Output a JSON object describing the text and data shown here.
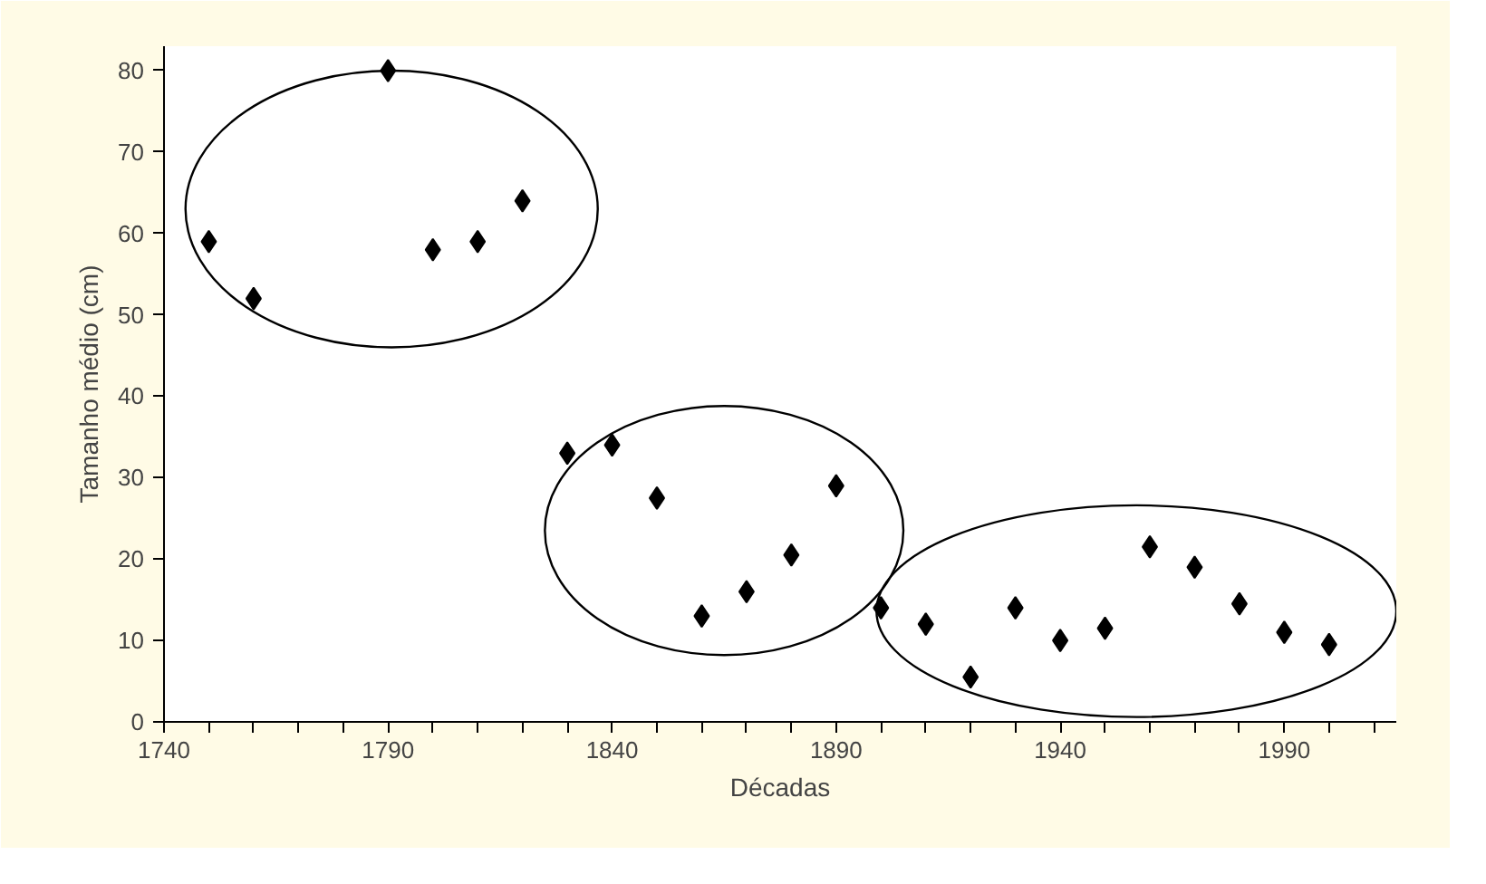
{
  "chart_data": {
    "type": "scatter",
    "xlabel": "Décadas",
    "ylabel": "Tamanho médio (cm)",
    "x": [
      1750,
      1760,
      1790,
      1800,
      1810,
      1820,
      1830,
      1840,
      1850,
      1860,
      1870,
      1880,
      1890,
      1900,
      1910,
      1920,
      1930,
      1940,
      1950,
      1960,
      1970,
      1980,
      1990,
      2000
    ],
    "values": [
      59,
      52,
      80,
      58,
      59,
      64,
      33,
      34,
      27.5,
      13,
      16,
      20.5,
      29,
      14,
      12,
      5.5,
      14,
      10,
      11.5,
      21.5,
      19,
      14.5,
      11,
      9.5
    ],
    "color": "#000000",
    "marker": "diamond",
    "grid": false,
    "xlim": [
      1740,
      2015
    ],
    "ylim": [
      0,
      83
    ],
    "xticks": [
      1740,
      {
        "value": 1750,
        "label": null
      },
      {
        "value": 1760,
        "label": null
      },
      {
        "value": 1770,
        "label": null
      },
      {
        "value": 1780,
        "label": null
      },
      1790,
      {
        "value": 1800,
        "label": null
      },
      {
        "value": 1810,
        "label": null
      },
      {
        "value": 1820,
        "label": null
      },
      {
        "value": 1830,
        "label": null
      },
      1840,
      {
        "value": 1850,
        "label": null
      },
      {
        "value": 1860,
        "label": null
      },
      {
        "value": 1870,
        "label": null
      },
      {
        "value": 1880,
        "label": null
      },
      1890,
      {
        "value": 1900,
        "label": null
      },
      {
        "value": 1910,
        "label": null
      },
      {
        "value": 1920,
        "label": null
      },
      {
        "value": 1930,
        "label": null
      },
      1940,
      {
        "value": 1950,
        "label": null
      },
      {
        "value": 1960,
        "label": null
      },
      {
        "value": 1970,
        "label": null
      },
      {
        "value": 1980,
        "label": null
      },
      1990,
      {
        "value": 2000,
        "label": null
      },
      {
        "value": 2010,
        "label": null
      }
    ],
    "yticks": [
      0,
      10,
      20,
      30,
      40,
      50,
      60,
      70,
      80
    ]
  }
}
